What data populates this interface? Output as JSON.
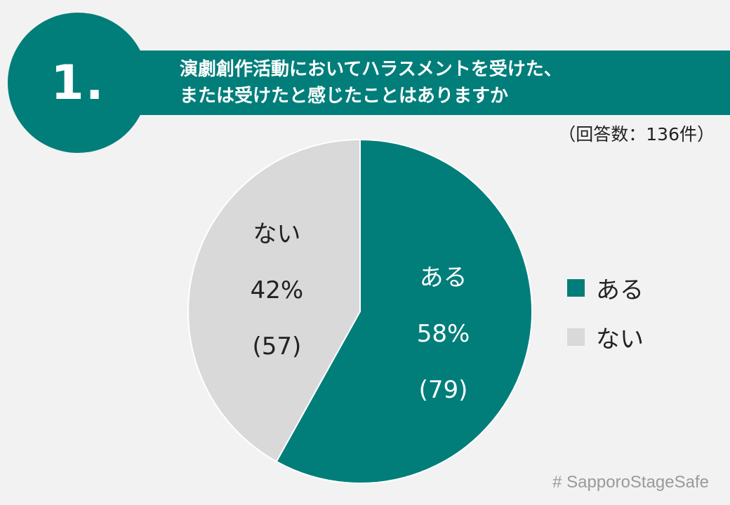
{
  "question_number": "1.",
  "question_lines": [
    "演劇創作活動においてハラスメントを受けた、",
    "または受けたと感じたことはありますか"
  ],
  "response_count": "（回答数：136件）",
  "hashtag": "# SapporoStageSafe",
  "colors": {
    "accent": "#017e7a",
    "no_slice": "#d9d9d9",
    "background": "#f2f2f2"
  },
  "chart_data": {
    "type": "pie",
    "title": "演劇創作活動においてハラスメントを受けた、または受けたと感じたことはありますか",
    "total": 136,
    "slices": [
      {
        "label": "ある",
        "value": 79,
        "percent_label": "58%",
        "count_label": "(79)",
        "color": "#017e7a",
        "text_color": "#ffffff"
      },
      {
        "label": "ない",
        "value": 57,
        "percent_label": "42%",
        "count_label": "(57)",
        "color": "#d9d9d9",
        "text_color": "#222222"
      }
    ],
    "start": "12 o'clock",
    "direction": "clockwise",
    "legend_position": "right"
  }
}
